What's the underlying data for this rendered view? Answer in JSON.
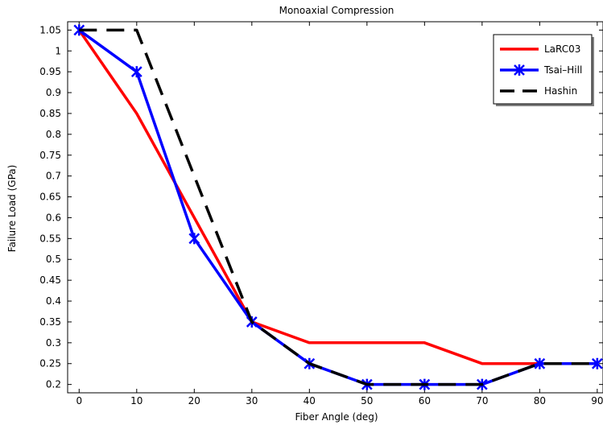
{
  "chart_data": {
    "type": "line",
    "title": "Monoaxial Compression",
    "xlabel": "Fiber Angle (deg)",
    "ylabel": "Failure Load (GPa)",
    "xlim": [
      -2,
      91
    ],
    "ylim": [
      0.18,
      1.07
    ],
    "xticks": [
      0,
      10,
      20,
      30,
      40,
      50,
      60,
      70,
      80,
      90
    ],
    "yticks": [
      0.2,
      0.25,
      0.3,
      0.35,
      0.4,
      0.45,
      0.5,
      0.55,
      0.6,
      0.65,
      0.7,
      0.75,
      0.8,
      0.85,
      0.9,
      0.95,
      1,
      1.05
    ],
    "ytick_labels": [
      "0.2",
      "0.25",
      "0.3",
      "0.35",
      "0.4",
      "0.45",
      "0.5",
      "0.55",
      "0.6",
      "0.65",
      "0.7",
      "0.75",
      "0.8",
      "0.85",
      "0.9",
      "0.95",
      "1",
      "1.05"
    ],
    "grid": false,
    "legend_position": "top-right",
    "series": [
      {
        "name": "LaRC03",
        "color": "#ff0000",
        "line_style": "solid",
        "marker": "none",
        "x": [
          0,
          10,
          20,
          30,
          40,
          50,
          60,
          70,
          80,
          90
        ],
        "y": [
          1.05,
          0.85,
          0.6,
          0.35,
          0.3,
          0.3,
          0.3,
          0.25,
          0.25,
          0.25
        ]
      },
      {
        "name": "Tsai–Hill",
        "color": "#0000ff",
        "line_style": "solid",
        "marker": "star",
        "x": [
          0,
          10,
          20,
          30,
          40,
          50,
          60,
          70,
          80,
          90
        ],
        "y": [
          1.05,
          0.95,
          0.55,
          0.35,
          0.25,
          0.2,
          0.2,
          0.2,
          0.25,
          0.25
        ]
      },
      {
        "name": "Hashin",
        "color": "#000000",
        "line_style": "dashed",
        "marker": "none",
        "x": [
          0,
          10,
          20,
          30,
          40,
          50,
          60,
          70,
          80,
          90
        ],
        "y": [
          1.05,
          1.05,
          0.7,
          0.35,
          0.25,
          0.2,
          0.2,
          0.2,
          0.25,
          0.25
        ]
      }
    ]
  }
}
